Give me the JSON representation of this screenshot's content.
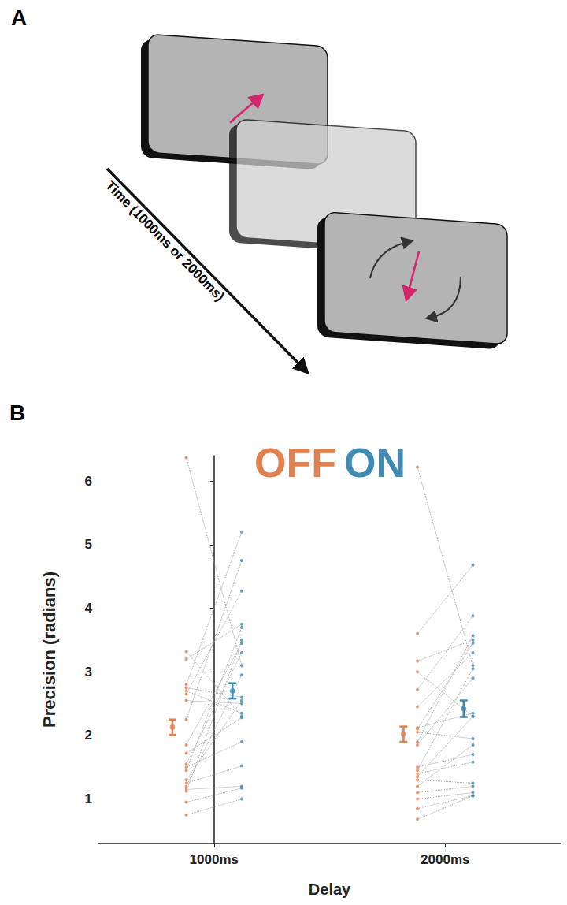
{
  "panel_a": {
    "label": "A",
    "time_axis": "Time (1000ms or 2000ms)"
  },
  "panel_b": {
    "label": "B"
  },
  "chart_data": {
    "type": "scatter",
    "categories": [
      "1000ms",
      "2000ms"
    ],
    "x_label": "Delay",
    "y_label": "Precision (radians)",
    "ylim": [
      0.3,
      6.4
    ],
    "yticks": [
      1,
      2,
      3,
      4,
      5,
      6
    ],
    "grid": false,
    "series": [
      {
        "name": "OFF",
        "color": "#e3804f",
        "values": [
          [
            6.37,
            3.32,
            3.2,
            2.8,
            2.75,
            2.7,
            2.65,
            2.55,
            2.25,
            1.85,
            1.72,
            1.55,
            1.5,
            1.45,
            1.3,
            1.25,
            1.2,
            1.15,
            1.12,
            0.95,
            0.75
          ],
          [
            6.22,
            3.6,
            3.17,
            3.0,
            2.72,
            2.45,
            2.12,
            2.1,
            2.05,
            1.9,
            1.85,
            1.5,
            1.45,
            1.4,
            1.35,
            1.3,
            1.2,
            1.1,
            1.0,
            0.85,
            0.68
          ]
        ],
        "means": [
          2.13,
          2.02
        ],
        "errors": [
          0.12,
          0.12
        ]
      },
      {
        "name": "ON",
        "color": "#3f8bb3",
        "values": [
          [
            3.1,
            2.3,
            3.75,
            5.2,
            2.6,
            2.35,
            4.27,
            2.5,
            4.75,
            3.45,
            2.28,
            3.3,
            1.9,
            3.7,
            2.55,
            1.52,
            2.95,
            1.2,
            3.5,
            1.17,
            1.0
          ],
          [
            3.1,
            4.68,
            3.5,
            2.3,
            3.88,
            3.3,
            2.35,
            3.45,
            1.95,
            3.57,
            2.9,
            1.7,
            3.05,
            1.58,
            2.3,
            1.25,
            1.85,
            1.2,
            1.1,
            1.05,
            1.05
          ]
        ],
        "means": [
          2.7,
          2.42
        ],
        "errors": [
          0.12,
          0.13
        ]
      }
    ]
  }
}
